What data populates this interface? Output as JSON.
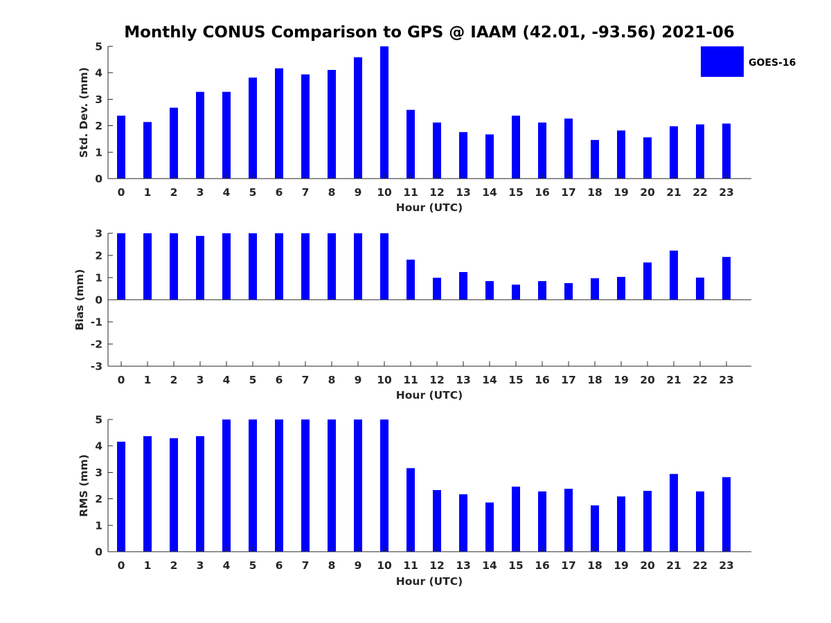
{
  "figure_title": "Monthly CONUS Comparison to GPS @ IAAM (42.01, -93.56) 2021-06",
  "legend": {
    "label": "GOES-16",
    "color": "#0000ff"
  },
  "bar_color": "#0000ff",
  "chart_data": [
    {
      "type": "bar",
      "name": "std-dev",
      "categories": [
        "0",
        "1",
        "2",
        "3",
        "4",
        "5",
        "6",
        "7",
        "8",
        "9",
        "10",
        "11",
        "12",
        "13",
        "14",
        "15",
        "16",
        "17",
        "18",
        "19",
        "20",
        "21",
        "22",
        "23"
      ],
      "series": [
        {
          "name": "GOES-16",
          "values": [
            2.38,
            2.14,
            2.68,
            3.28,
            3.28,
            3.82,
            4.17,
            3.94,
            4.11,
            4.59,
            5.0,
            2.6,
            2.12,
            1.76,
            1.67,
            2.38,
            2.12,
            2.27,
            1.46,
            1.82,
            1.56,
            1.98,
            2.05,
            2.08
          ]
        }
      ],
      "title": "",
      "xlabel": "Hour (UTC)",
      "ylabel": "Std. Dev. (mm)",
      "ylim": [
        0,
        5
      ],
      "yticks": [
        "0",
        "1",
        "2",
        "3",
        "4",
        "5"
      ],
      "grid": false,
      "legend": "top-right"
    },
    {
      "type": "bar",
      "name": "bias",
      "categories": [
        "0",
        "1",
        "2",
        "3",
        "4",
        "5",
        "6",
        "7",
        "8",
        "9",
        "10",
        "11",
        "12",
        "13",
        "14",
        "15",
        "16",
        "17",
        "18",
        "19",
        "20",
        "21",
        "22",
        "23"
      ],
      "series": [
        {
          "name": "GOES-16",
          "values": [
            3.0,
            3.0,
            3.0,
            2.88,
            3.0,
            3.0,
            3.0,
            3.0,
            3.0,
            3.0,
            3.0,
            1.81,
            0.99,
            1.25,
            0.84,
            0.68,
            0.84,
            0.75,
            0.97,
            1.03,
            1.68,
            2.22,
            1.0,
            1.93
          ]
        }
      ],
      "title": "",
      "xlabel": "Hour (UTC)",
      "ylabel": "Bias (mm)",
      "ylim": [
        -3,
        3
      ],
      "yticks": [
        "-3",
        "-2",
        "-1",
        "0",
        "1",
        "2",
        "3"
      ],
      "grid": false
    },
    {
      "type": "bar",
      "name": "rms",
      "categories": [
        "0",
        "1",
        "2",
        "3",
        "4",
        "5",
        "6",
        "7",
        "8",
        "9",
        "10",
        "11",
        "12",
        "13",
        "14",
        "15",
        "16",
        "17",
        "18",
        "19",
        "20",
        "21",
        "22",
        "23"
      ],
      "series": [
        {
          "name": "GOES-16",
          "values": [
            4.16,
            4.37,
            4.29,
            4.37,
            5.0,
            5.0,
            5.0,
            5.0,
            5.0,
            5.0,
            5.0,
            3.16,
            2.33,
            2.17,
            1.86,
            2.46,
            2.28,
            2.38,
            1.75,
            2.09,
            2.3,
            2.94,
            2.28,
            2.82
          ]
        }
      ],
      "title": "",
      "xlabel": "Hour (UTC)",
      "ylabel": "RMS (mm)",
      "ylim": [
        0,
        5
      ],
      "yticks": [
        "0",
        "1",
        "2",
        "3",
        "4",
        "5"
      ],
      "grid": false
    }
  ]
}
